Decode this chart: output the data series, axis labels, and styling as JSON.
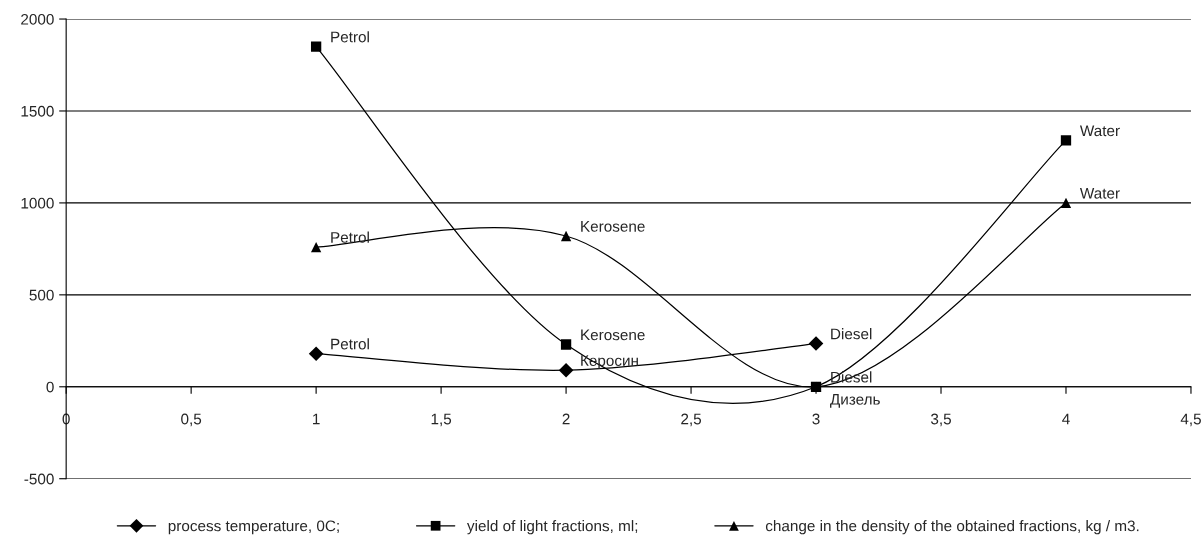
{
  "chart_data": {
    "type": "line",
    "x": [
      1,
      2,
      3,
      4
    ],
    "series": [
      {
        "name": "process temperature, 0C;",
        "color": "#000000",
        "marker": "diamond",
        "x": [
          1,
          2,
          3
        ],
        "values": [
          180,
          90,
          235
        ]
      },
      {
        "name": "yield of light fractions, ml;",
        "color": "#000000",
        "marker": "square",
        "values": [
          1850,
          230,
          0,
          1340
        ]
      },
      {
        "name": "change in the density of the obtained fractions, kg / m3.",
        "color": "#000000",
        "marker": "triangle",
        "values": [
          760,
          820,
          0,
          1000
        ]
      }
    ],
    "xlim": [
      0,
      4.5
    ],
    "xticks": [
      0,
      {
        "value": 0.5,
        "label": "0,5"
      },
      1,
      {
        "value": 1.5,
        "label": "1,5"
      },
      2,
      {
        "value": 2.5,
        "label": "2,5"
      },
      3,
      {
        "value": 3.5,
        "label": "3,5"
      },
      4,
      {
        "value": 4.5,
        "label": "4,5"
      }
    ],
    "ylim": [
      -500,
      2000
    ],
    "yticks": [
      -500,
      0,
      500,
      1000,
      1500,
      2000
    ],
    "grid": "y",
    "legend": "bottom",
    "line_style": "solid",
    "annotations": [
      {
        "text": "Petrol",
        "x": 1,
        "y": 180
      },
      {
        "text": "Керосин",
        "x": 2,
        "y": 90
      },
      {
        "text": "Diesel",
        "x": 3,
        "y": 235
      },
      {
        "text": "Petrol",
        "x": 1,
        "y": 1850
      },
      {
        "text": "Kerosene",
        "x": 2,
        "y": 230
      },
      {
        "text": "Diesel",
        "x": 3,
        "y": 0
      },
      {
        "text": "Water",
        "x": 4,
        "y": 1340
      },
      {
        "text": "Petrol",
        "x": 1,
        "y": 760
      },
      {
        "text": "Kerosene",
        "x": 2,
        "y": 820
      },
      {
        "text": "Дизель",
        "x": 3,
        "y": 0
      },
      {
        "text": "Water",
        "x": 4,
        "y": 1000
      }
    ]
  }
}
